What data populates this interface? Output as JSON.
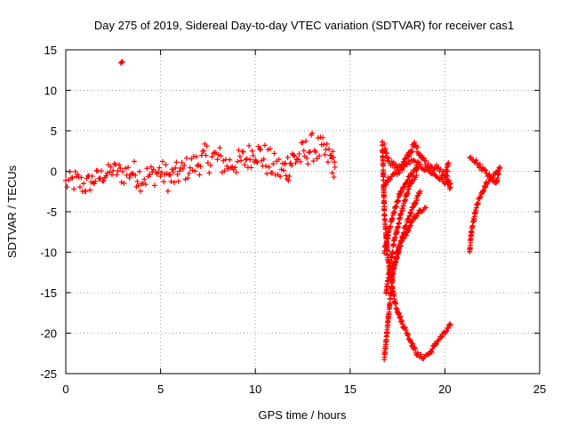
{
  "chart_data": {
    "type": "scatter",
    "title": "Day 275 of 2019, Sidereal Day-to-day VTEC variation (SDTVAR) for receiver cas1",
    "xlabel": "GPS time / hours",
    "ylabel": "SDTVAR / TECUs",
    "xlim": [
      0,
      25
    ],
    "ylim": [
      -25,
      15
    ],
    "xticks": [
      0,
      5,
      10,
      15,
      20,
      25
    ],
    "yticks": [
      15,
      10,
      5,
      0,
      -5,
      -10,
      -15,
      -20,
      -25
    ],
    "grid": true,
    "marker": "+",
    "color": "#ff0000",
    "series": [
      {
        "name": "SDTVAR",
        "segments": [
          {
            "x": [
              0.0,
              0.5,
              1.0,
              1.5,
              2.0,
              2.5,
              3.0,
              3.5,
              4.0,
              4.5,
              5.0,
              5.5,
              6.0,
              6.5,
              7.0,
              7.5,
              8.0,
              8.5,
              9.0,
              9.5,
              10.0,
              10.5,
              11.0,
              11.5,
              12.0,
              12.5,
              13.0,
              13.5,
              14.0,
              14.2
            ],
            "y": [
              -1.5,
              -1.2,
              -1.8,
              -1.0,
              -0.5,
              0.2,
              -0.3,
              0.0,
              -0.8,
              -0.5,
              0.0,
              -1.0,
              -0.2,
              0.5,
              1.0,
              1.8,
              1.5,
              0.8,
              1.0,
              1.5,
              2.5,
              1.5,
              0.5,
              0.0,
              1.5,
              2.0,
              3.0,
              2.5,
              1.5,
              0.5
            ],
            "spread": [
              1.2,
              1.5,
              1.3,
              1.2,
              1.0,
              1.0,
              1.5,
              1.5,
              1.8,
              1.5,
              1.5,
              1.8,
              1.5,
              1.5,
              1.5,
              2.0,
              2.0,
              1.5,
              1.5,
              1.8,
              1.5,
              2.0,
              1.8,
              2.0,
              2.0,
              1.8,
              1.8,
              1.8,
              1.8,
              1.5
            ]
          },
          {
            "x": [
              2.9,
              3.0
            ],
            "y": [
              13.4,
              13.5
            ],
            "spread": [
              0.1,
              0.1
            ]
          },
          {
            "x": [
              16.7,
              16.75,
              16.8,
              16.9,
              17.0,
              17.2,
              17.4,
              17.7,
              18.0,
              18.2,
              18.4,
              18.6,
              18.8,
              19.2,
              19.6,
              20.0,
              20.3
            ],
            "y": [
              3.5,
              0.0,
              -5.0,
              -8.0,
              -11.0,
              -14.0,
              -16.5,
              -18.5,
              -20.0,
              -21.0,
              -22.0,
              -22.8,
              -23.0,
              -22.5,
              -21.0,
              -20.0,
              -19.0
            ],
            "spread": [
              0.3,
              0.3,
              0.3,
              0.3,
              0.3,
              0.3,
              0.3,
              0.3,
              0.3,
              0.3,
              0.3,
              0.3,
              0.3,
              0.3,
              0.3,
              0.3,
              0.3
            ]
          },
          {
            "x": [
              16.8,
              17.0,
              17.4,
              17.8,
              18.2,
              18.4,
              18.6,
              19.0,
              19.5,
              20.0,
              20.3
            ],
            "y": [
              3.0,
              1.5,
              0.5,
              1.0,
              2.5,
              3.3,
              2.5,
              1.0,
              0.5,
              -0.5,
              -1.5
            ],
            "spread": [
              0.4,
              0.4,
              0.4,
              0.4,
              0.4,
              0.4,
              0.4,
              0.4,
              0.4,
              0.4,
              0.4
            ]
          },
          {
            "x": [
              16.8,
              17.0,
              17.3,
              17.6,
              18.0,
              18.3,
              18.5,
              18.8,
              19.2,
              19.5,
              19.8,
              20.1,
              20.3
            ],
            "y": [
              -1.8,
              -1.0,
              -0.5,
              0.0,
              1.0,
              1.2,
              1.0,
              0.5,
              0.0,
              -0.5,
              -1.0,
              -1.5,
              -2.0
            ],
            "spread": [
              0.3,
              0.3,
              0.3,
              0.3,
              0.3,
              0.3,
              0.3,
              0.3,
              0.3,
              0.3,
              0.3,
              0.3,
              0.3
            ]
          },
          {
            "x": [
              16.8,
              17.0,
              17.2,
              17.4,
              17.6,
              17.8,
              18.0,
              18.2,
              18.4,
              18.6
            ],
            "y": [
              -10.0,
              -8.0,
              -6.0,
              -4.5,
              -3.0,
              -2.0,
              -1.2,
              -0.5,
              0.0,
              0.5
            ],
            "spread": [
              0.3,
              0.3,
              0.3,
              0.3,
              0.3,
              0.3,
              0.3,
              0.3,
              0.3,
              0.3
            ]
          },
          {
            "x": [
              16.9,
              17.1,
              17.3,
              17.5,
              17.7,
              17.9,
              18.1,
              18.3,
              18.5
            ],
            "y": [
              -15.0,
              -12.0,
              -9.0,
              -7.0,
              -5.0,
              -3.5,
              -2.0,
              -1.0,
              -0.5
            ],
            "spread": [
              0.3,
              0.3,
              0.3,
              0.3,
              0.3,
              0.3,
              0.3,
              0.3,
              0.3
            ]
          },
          {
            "x": [
              16.8,
              16.9,
              17.0,
              17.1,
              17.2,
              17.3,
              17.5,
              17.7,
              17.9,
              18.1,
              18.3,
              18.5,
              18.7
            ],
            "y": [
              -23.0,
              -21.0,
              -18.5,
              -16.0,
              -14.0,
              -12.0,
              -10.0,
              -8.5,
              -7.0,
              -5.8,
              -4.5,
              -3.5,
              -2.5
            ],
            "spread": [
              0.3,
              0.3,
              0.3,
              0.3,
              0.3,
              0.3,
              0.3,
              0.3,
              0.3,
              0.3,
              0.3,
              0.3,
              0.3
            ]
          },
          {
            "x": [
              17.2,
              17.4,
              17.6,
              17.8,
              18.0,
              18.2,
              18.4,
              18.6,
              18.8,
              19.0
            ],
            "y": [
              -13.0,
              -11.0,
              -9.5,
              -8.5,
              -7.5,
              -6.5,
              -5.8,
              -5.2,
              -4.8,
              -4.5
            ],
            "spread": [
              0.3,
              0.3,
              0.3,
              0.3,
              0.3,
              0.3,
              0.3,
              0.3,
              0.3,
              0.3
            ]
          },
          {
            "x": [
              20.0,
              20.2
            ],
            "y": [
              -1.0,
              1.0
            ],
            "spread": [
              0.6,
              0.6
            ]
          },
          {
            "x": [
              21.3,
              21.4,
              21.6,
              21.8,
              22.0,
              22.2,
              22.4,
              22.6,
              22.8
            ],
            "y": [
              -10.0,
              -7.5,
              -5.0,
              -3.5,
              -2.5,
              -1.5,
              -1.0,
              -0.5,
              0.0
            ],
            "spread": [
              0.3,
              0.3,
              0.3,
              0.3,
              0.3,
              0.3,
              0.3,
              0.3,
              0.3
            ]
          },
          {
            "x": [
              21.3,
              21.5,
              21.7,
              21.9,
              22.1,
              22.3,
              22.5,
              22.7,
              22.9
            ],
            "y": [
              1.6,
              1.5,
              1.0,
              0.5,
              0.0,
              -0.5,
              -1.0,
              -1.5,
              0.5
            ],
            "spread": [
              0.3,
              0.3,
              0.3,
              0.3,
              0.3,
              0.3,
              0.3,
              0.3,
              0.3
            ]
          }
        ]
      }
    ]
  }
}
